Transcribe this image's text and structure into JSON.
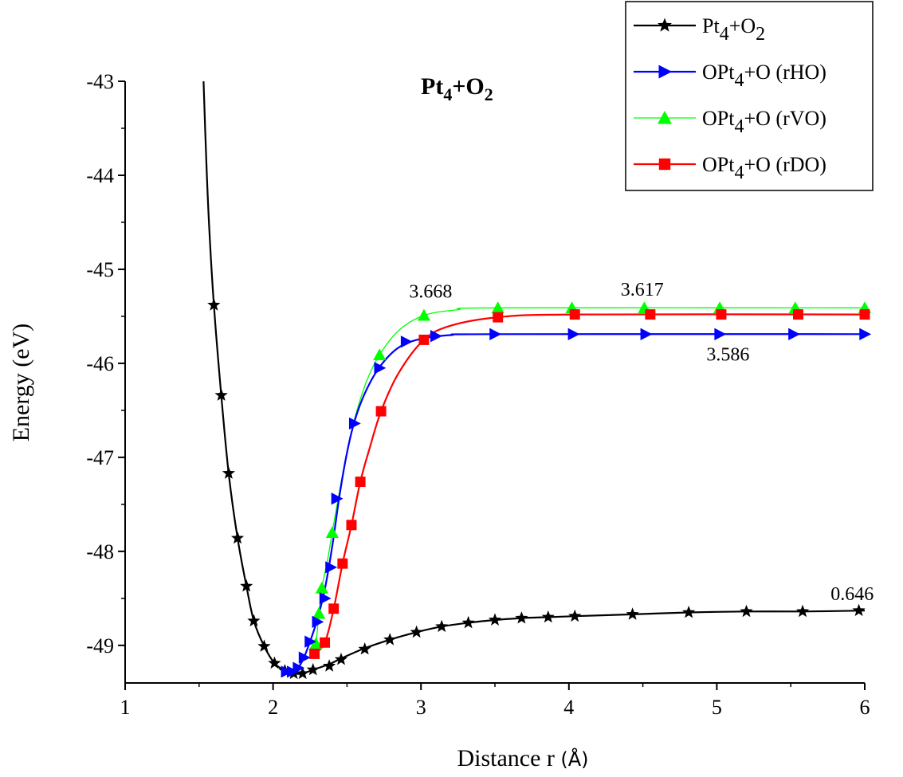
{
  "chart_data": {
    "type": "line",
    "title": "",
    "inset_title": {
      "base": "Pt",
      "sub1": "4",
      "mid": "+O",
      "sub2": "2"
    },
    "xlabel": {
      "text": "Distance r ",
      "unit": "(Å)"
    },
    "ylabel": "Energy (eV)",
    "xlim": [
      1,
      6
    ],
    "ylim": [
      -49.4,
      -43
    ],
    "xticks": [
      1,
      2,
      3,
      4,
      5,
      6
    ],
    "xtick_labels": [
      "1",
      "2",
      "3",
      "4",
      "5",
      "6"
    ],
    "yticks": [
      -43,
      -44,
      -45,
      -46,
      -47,
      -48,
      -49
    ],
    "ytick_labels": [
      "-43",
      "-44",
      "-45",
      "-46",
      "-47",
      "-48",
      "-49"
    ],
    "legend_position": "top-right",
    "series": [
      {
        "name": "Pt4+O2",
        "legend": {
          "base": "Pt",
          "sub1": "4",
          "mid": "+O",
          "sub2": "2",
          "tail": ""
        },
        "color": "#000000",
        "marker": "star",
        "line_width": 2.2,
        "points": [
          [
            1.6,
            -45.38
          ],
          [
            1.65,
            -46.34
          ],
          [
            1.7,
            -47.17
          ],
          [
            1.76,
            -47.86
          ],
          [
            1.82,
            -48.37
          ],
          [
            1.87,
            -48.74
          ],
          [
            1.94,
            -49.01
          ],
          [
            2.01,
            -49.19
          ],
          [
            2.08,
            -49.27
          ],
          [
            2.14,
            -49.3
          ],
          [
            2.2,
            -49.3
          ],
          [
            2.27,
            -49.26
          ],
          [
            2.38,
            -49.22
          ],
          [
            2.46,
            -49.15
          ],
          [
            2.62,
            -49.04
          ],
          [
            2.79,
            -48.94
          ],
          [
            2.97,
            -48.86
          ],
          [
            3.14,
            -48.8
          ],
          [
            3.32,
            -48.76
          ],
          [
            3.5,
            -48.73
          ],
          [
            3.68,
            -48.71
          ],
          [
            3.86,
            -48.7
          ],
          [
            4.04,
            -48.69
          ],
          [
            4.43,
            -48.67
          ],
          [
            4.81,
            -48.65
          ],
          [
            5.2,
            -48.64
          ],
          [
            5.58,
            -48.64
          ],
          [
            5.96,
            -48.63
          ]
        ],
        "curve": [
          [
            1.53,
            -43.0
          ],
          [
            1.55,
            -43.9
          ],
          [
            1.57,
            -44.6
          ],
          [
            1.6,
            -45.38
          ],
          [
            1.65,
            -46.34
          ],
          [
            1.7,
            -47.17
          ],
          [
            1.76,
            -47.86
          ],
          [
            1.82,
            -48.37
          ],
          [
            1.87,
            -48.74
          ],
          [
            1.94,
            -49.01
          ],
          [
            2.01,
            -49.19
          ],
          [
            2.08,
            -49.27
          ],
          [
            2.14,
            -49.3
          ],
          [
            2.2,
            -49.3
          ],
          [
            2.27,
            -49.26
          ],
          [
            2.38,
            -49.2
          ],
          [
            2.46,
            -49.14
          ],
          [
            2.62,
            -49.03
          ],
          [
            2.79,
            -48.94
          ],
          [
            2.97,
            -48.86
          ],
          [
            3.14,
            -48.8
          ],
          [
            3.32,
            -48.76
          ],
          [
            3.5,
            -48.73
          ],
          [
            3.68,
            -48.71
          ],
          [
            3.86,
            -48.7
          ],
          [
            4.04,
            -48.69
          ],
          [
            4.43,
            -48.67
          ],
          [
            4.81,
            -48.65
          ],
          [
            5.2,
            -48.64
          ],
          [
            5.58,
            -48.64
          ],
          [
            6.0,
            -48.63
          ]
        ]
      },
      {
        "name": "OPt4+O (rHO)",
        "legend": {
          "base": "OPt",
          "sub1": "4",
          "mid": "+O (rHO)",
          "sub2": "",
          "tail": ""
        },
        "color": "#0000ff",
        "marker": "triangle-right",
        "line_width": 2.2,
        "points": [
          [
            2.09,
            -49.28
          ],
          [
            2.13,
            -49.28
          ],
          [
            2.17,
            -49.24
          ],
          [
            2.21,
            -49.13
          ],
          [
            2.25,
            -48.96
          ],
          [
            2.3,
            -48.75
          ],
          [
            2.35,
            -48.5
          ],
          [
            2.39,
            -48.17
          ],
          [
            2.43,
            -47.44
          ],
          [
            2.55,
            -46.64
          ],
          [
            2.72,
            -46.05
          ],
          [
            2.9,
            -45.77
          ],
          [
            3.1,
            -45.71
          ],
          [
            3.5,
            -45.69
          ],
          [
            4.03,
            -45.69
          ],
          [
            4.52,
            -45.69
          ],
          [
            5.02,
            -45.69
          ],
          [
            5.52,
            -45.69
          ],
          [
            6.0,
            -45.69
          ]
        ],
        "curve": [
          [
            2.09,
            -49.28
          ],
          [
            2.15,
            -49.27
          ],
          [
            2.2,
            -49.16
          ],
          [
            2.25,
            -48.96
          ],
          [
            2.3,
            -48.72
          ],
          [
            2.35,
            -48.4
          ],
          [
            2.4,
            -47.95
          ],
          [
            2.45,
            -47.4
          ],
          [
            2.5,
            -46.95
          ],
          [
            2.55,
            -46.62
          ],
          [
            2.62,
            -46.32
          ],
          [
            2.72,
            -46.04
          ],
          [
            2.85,
            -45.83
          ],
          [
            3.0,
            -45.74
          ],
          [
            3.2,
            -45.7
          ],
          [
            3.5,
            -45.69
          ],
          [
            6.0,
            -45.69
          ]
        ]
      },
      {
        "name": "OPt4+O (rVO)",
        "legend": {
          "base": "OPt",
          "sub1": "4",
          "mid": "+O (rVO)",
          "sub2": "",
          "tail": ""
        },
        "color": "#00ff00",
        "marker": "triangle-up",
        "line_width": 1.3,
        "points": [
          [
            2.29,
            -48.98
          ],
          [
            2.31,
            -48.66
          ],
          [
            2.33,
            -48.39
          ],
          [
            2.4,
            -47.8
          ],
          [
            2.72,
            -45.91
          ],
          [
            3.02,
            -45.49
          ],
          [
            3.52,
            -45.41
          ],
          [
            4.02,
            -45.41
          ],
          [
            4.51,
            -45.41
          ],
          [
            5.02,
            -45.41
          ],
          [
            5.53,
            -45.41
          ],
          [
            6.0,
            -45.41
          ]
        ],
        "curve": [
          [
            2.27,
            -49.1
          ],
          [
            2.29,
            -48.98
          ],
          [
            2.31,
            -48.66
          ],
          [
            2.33,
            -48.39
          ],
          [
            2.37,
            -48.08
          ],
          [
            2.4,
            -47.8
          ],
          [
            2.48,
            -47.1
          ],
          [
            2.55,
            -46.6
          ],
          [
            2.63,
            -46.2
          ],
          [
            2.72,
            -45.91
          ],
          [
            2.85,
            -45.65
          ],
          [
            3.02,
            -45.49
          ],
          [
            3.25,
            -45.43
          ],
          [
            3.52,
            -45.41
          ],
          [
            6.0,
            -45.41
          ]
        ]
      },
      {
        "name": "OPt4+O (rDO)",
        "legend": {
          "base": "OPt",
          "sub1": "4",
          "mid": "+O (rDO)",
          "sub2": "",
          "tail": ""
        },
        "color": "#ff0000",
        "marker": "square",
        "line_width": 2.2,
        "points": [
          [
            2.28,
            -49.09
          ],
          [
            2.35,
            -48.97
          ],
          [
            2.41,
            -48.61
          ],
          [
            2.47,
            -48.13
          ],
          [
            2.53,
            -47.72
          ],
          [
            2.59,
            -47.26
          ],
          [
            2.73,
            -46.51
          ],
          [
            3.02,
            -45.75
          ],
          [
            3.52,
            -45.51
          ],
          [
            4.04,
            -45.48
          ],
          [
            4.55,
            -45.48
          ],
          [
            5.03,
            -45.48
          ],
          [
            5.55,
            -45.48
          ],
          [
            6.0,
            -45.48
          ]
        ],
        "curve": [
          [
            2.28,
            -49.09
          ],
          [
            2.35,
            -48.97
          ],
          [
            2.41,
            -48.61
          ],
          [
            2.47,
            -48.13
          ],
          [
            2.53,
            -47.72
          ],
          [
            2.59,
            -47.26
          ],
          [
            2.65,
            -46.92
          ],
          [
            2.73,
            -46.51
          ],
          [
            2.85,
            -46.1
          ],
          [
            3.02,
            -45.75
          ],
          [
            3.2,
            -45.6
          ],
          [
            3.52,
            -45.51
          ],
          [
            4.04,
            -45.48
          ],
          [
            6.0,
            -45.48
          ]
        ]
      }
    ],
    "annotations": [
      {
        "text": "3.668",
        "x": 2.92,
        "y": -45.3
      },
      {
        "text": "3.617",
        "x": 4.35,
        "y": -45.28
      },
      {
        "text": "3.586",
        "x": 4.93,
        "y": -45.97
      },
      {
        "text": "0.646",
        "x": 5.77,
        "y": -48.52
      }
    ]
  }
}
